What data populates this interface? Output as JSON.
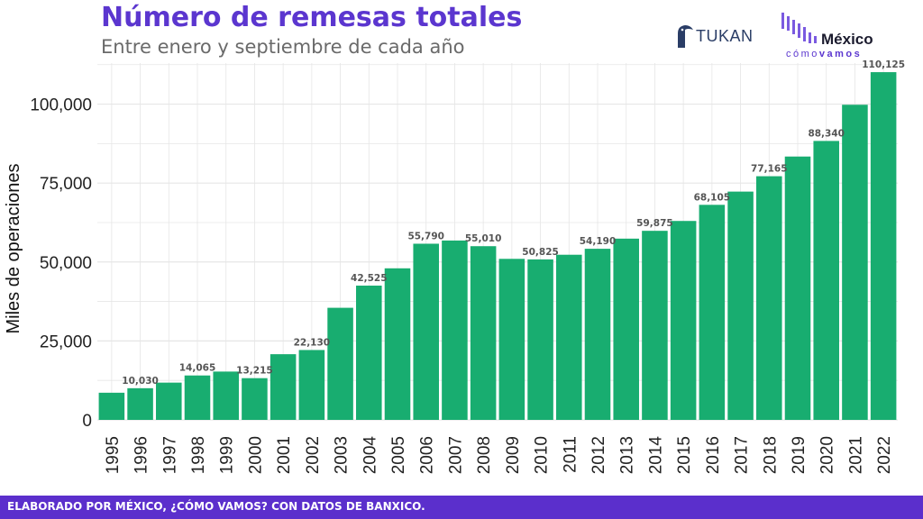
{
  "header": {
    "title": "Número de remesas totales",
    "subtitle": "Entre enero y septiembre de cada año"
  },
  "logos": {
    "tukan": "TUKAN",
    "mexico_como_vamos": {
      "line1": "México",
      "line2_a": "cómo",
      "line2_b": "vamos"
    }
  },
  "footer": {
    "text": "ELABORADO POR MÉXICO, ¿CÓMO VAMOS? CON DATOS DE BANXICO."
  },
  "colors": {
    "bar": "#18ad70",
    "title": "#5b36cf",
    "footer": "#5b2fcc",
    "grid": "#e6e6e6",
    "label": "#555555"
  },
  "chart_data": {
    "type": "bar",
    "ylabel": "Miles de operaciones",
    "xlabel": "",
    "ylim": [
      0,
      113000
    ],
    "yticks": [
      0,
      25000,
      50000,
      75000,
      100000
    ],
    "ytick_labels": [
      "0",
      "25,000",
      "50,000",
      "75,000",
      "100,000"
    ],
    "grid": true,
    "categories": [
      "1995",
      "1996",
      "1997",
      "1998",
      "1999",
      "2000",
      "2001",
      "2002",
      "2003",
      "2004",
      "2005",
      "2006",
      "2007",
      "2008",
      "2009",
      "2010",
      "2011",
      "2012",
      "2013",
      "2014",
      "2015",
      "2016",
      "2017",
      "2018",
      "2019",
      "2020",
      "2021",
      "2022"
    ],
    "values": [
      8600,
      10030,
      11800,
      14065,
      15300,
      13215,
      20800,
      22130,
      35500,
      42525,
      48000,
      55790,
      56800,
      55010,
      51000,
      50825,
      52300,
      54190,
      57400,
      59875,
      63000,
      68105,
      72300,
      77165,
      83400,
      88340,
      99800,
      110125
    ],
    "data_labels": [
      "",
      "10,030",
      "",
      "14,065",
      "",
      "13,215",
      "",
      "22,130",
      "",
      "42,525",
      "",
      "55,790",
      "",
      "55,010",
      "",
      "50,825",
      "",
      "54,190",
      "",
      "59,875",
      "",
      "68,105",
      "",
      "77,165",
      "",
      "88,340",
      "",
      "110,125"
    ]
  }
}
